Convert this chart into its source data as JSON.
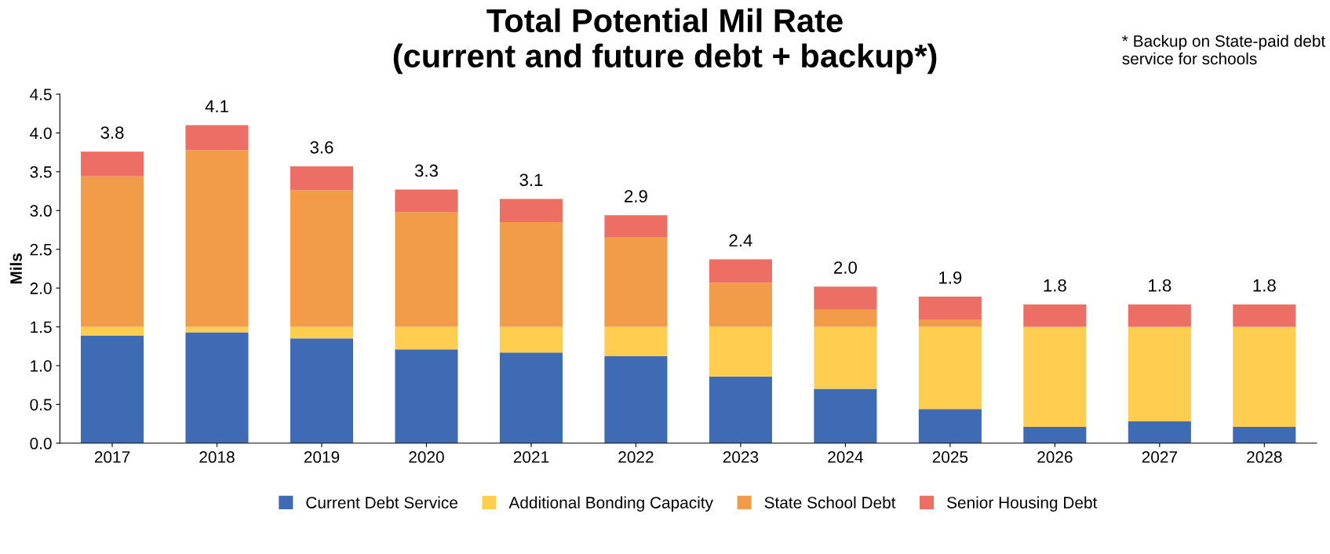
{
  "chart_data": {
    "type": "bar",
    "title": "Total Potential Mil Rate\n(current and future debt + backup*)",
    "ylabel": "Mils",
    "categories": [
      "2017",
      "2018",
      "2019",
      "2020",
      "2021",
      "2022",
      "2023",
      "2024",
      "2025",
      "2026",
      "2027",
      "2028"
    ],
    "stacked": true,
    "series": [
      {
        "name": "Current Debt Service",
        "color": "#3f6bb5",
        "values": [
          1.39,
          1.43,
          1.35,
          1.21,
          1.17,
          1.12,
          0.86,
          0.7,
          0.44,
          0.21,
          0.28,
          0.21
        ]
      },
      {
        "name": "Additional Bonding Capacity",
        "color": "#ffcd4f",
        "values": [
          0.11,
          0.07,
          0.15,
          0.29,
          0.33,
          0.38,
          0.64,
          0.8,
          1.06,
          1.29,
          1.22,
          1.29
        ]
      },
      {
        "name": "State School Debt",
        "color": "#f29b48",
        "values": [
          1.94,
          2.28,
          1.76,
          1.48,
          1.35,
          1.15,
          0.57,
          0.22,
          0.09,
          0,
          0,
          0
        ]
      },
      {
        "name": "Senior Housing Debt",
        "color": "#ec6e64",
        "values": [
          0.32,
          0.32,
          0.31,
          0.29,
          0.3,
          0.29,
          0.3,
          0.3,
          0.3,
          0.29,
          0.29,
          0.29
        ]
      }
    ],
    "totals": [
      "3.8",
      "4.1",
      "3.6",
      "3.3",
      "3.1",
      "2.9",
      "2.4",
      "2.0",
      "1.9",
      "1.8",
      "1.8",
      "1.8"
    ],
    "ylim": [
      0,
      4.5
    ],
    "yticks": [
      {
        "value": 0,
        "label": "0.0"
      },
      {
        "value": 0.5,
        "label": "0.5"
      },
      {
        "value": 1,
        "label": "1.0"
      },
      {
        "value": 1.5,
        "label": "1.5"
      },
      {
        "value": 2,
        "label": "2.0"
      },
      {
        "value": 2.5,
        "label": "2.5"
      },
      {
        "value": 3,
        "label": "3.0"
      },
      {
        "value": 3.5,
        "label": "3.5"
      },
      {
        "value": 4,
        "label": "4.0"
      },
      {
        "value": 4.5,
        "label": "4.5"
      }
    ],
    "annotations": [
      "* Backup on State-paid debt\nservice for schools"
    ],
    "legend": "bottom",
    "grid": false
  }
}
